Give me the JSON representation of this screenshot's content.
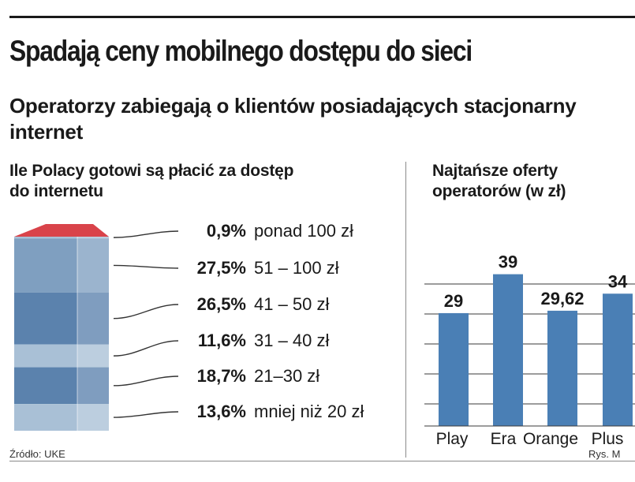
{
  "header": {
    "title": "Spadają ceny mobilnego dostępu do sieci",
    "subtitle": "Operatorzy zabiegają o klientów posiadających stacjonarny internet"
  },
  "footer": {
    "source": "Źródło: UKE",
    "credit": "Rys. M"
  },
  "colors": {
    "top_face": "#d9434a",
    "bar_blue": "#4a7fb5",
    "stack_light": "#a9c0d6",
    "stack_mid": "#7f9fc0",
    "stack_dark": "#5b82ad",
    "grid": "#3a3a3a"
  },
  "chart_data": [
    {
      "type": "stacked-column",
      "title": "Ile Polacy gotowi są płacić za dostęp do internetu",
      "segments": [
        {
          "value": 0.9,
          "label": "0,9%",
          "category": "ponad 100 zł"
        },
        {
          "value": 27.5,
          "label": "27,5%",
          "category": "51 – 100 zł"
        },
        {
          "value": 26.5,
          "label": "26,5%",
          "category": "41 – 50 zł"
        },
        {
          "value": 11.6,
          "label": "11,6%",
          "category": "31 – 40 zł"
        },
        {
          "value": 18.7,
          "label": "18,7%",
          "category": "21–30 zł"
        },
        {
          "value": 13.6,
          "label": "13,6%",
          "category": "mniej niż 20 zł"
        }
      ]
    },
    {
      "type": "bar",
      "title": "Najtańsze oferty operatorów (w zł)",
      "categories": [
        "Play",
        "Era",
        "Orange",
        "Plus"
      ],
      "values": [
        29,
        39,
        29.62,
        34
      ],
      "value_labels": [
        "29",
        "39",
        "29,62",
        "34"
      ],
      "ylim": [
        0,
        45
      ],
      "grid": true
    }
  ]
}
